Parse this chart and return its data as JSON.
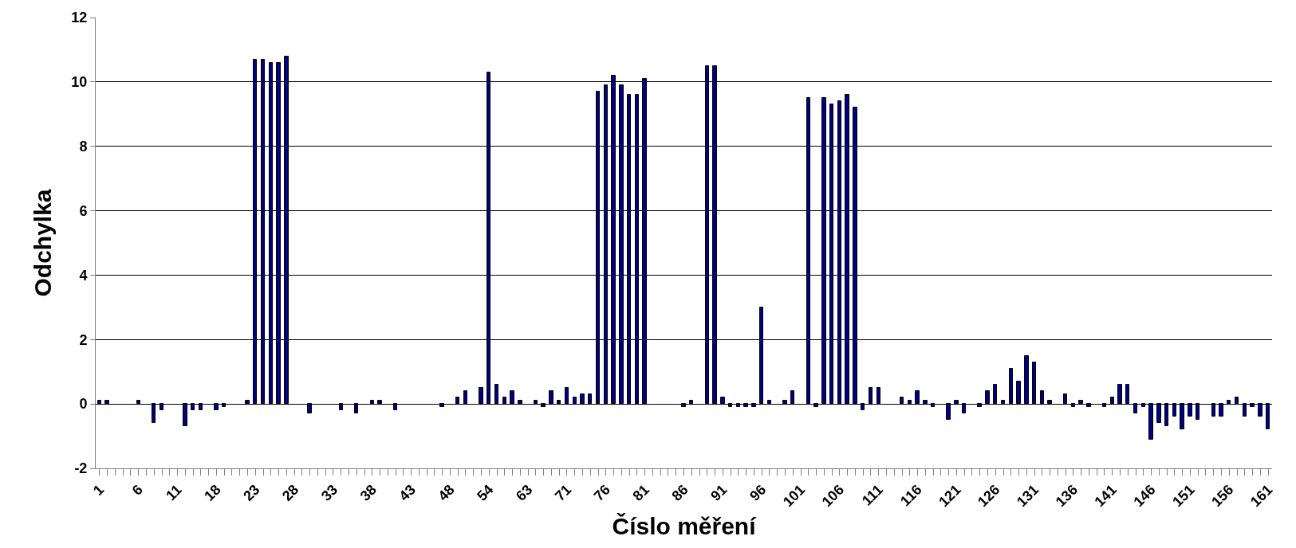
{
  "chart_data": {
    "type": "bar",
    "xlabel": "Číslo měření",
    "ylabel": "Odchylka",
    "categories": [
      "1",
      null,
      null,
      null,
      null,
      "6",
      null,
      null,
      null,
      null,
      "11",
      null,
      null,
      null,
      null,
      "18",
      null,
      null,
      null,
      null,
      "23",
      null,
      null,
      null,
      null,
      "28",
      null,
      null,
      null,
      null,
      "33",
      null,
      null,
      null,
      null,
      "38",
      null,
      null,
      null,
      null,
      "43",
      null,
      null,
      null,
      null,
      "48",
      null,
      null,
      null,
      null,
      "54",
      null,
      null,
      null,
      null,
      "63",
      null,
      null,
      null,
      null,
      "71",
      null,
      null,
      null,
      null,
      "76",
      null,
      null,
      null,
      null,
      "81",
      null,
      null,
      null,
      null,
      "86",
      null,
      null,
      null,
      null,
      "91",
      null,
      null,
      null,
      null,
      "96",
      null,
      null,
      null,
      null,
      "101",
      null,
      null,
      null,
      null,
      "106",
      null,
      null,
      null,
      null,
      "111",
      null,
      null,
      null,
      null,
      "116",
      null,
      null,
      null,
      null,
      "121",
      null,
      null,
      null,
      null,
      "126",
      null,
      null,
      null,
      null,
      "131",
      null,
      null,
      null,
      null,
      "136",
      null,
      null,
      null,
      null,
      "141",
      null,
      null,
      null,
      null,
      "146",
      null,
      null,
      null,
      null,
      "151",
      null,
      null,
      null,
      null,
      "156",
      null,
      null,
      null,
      null,
      "161"
    ],
    "values": [
      0.1,
      0.1,
      0,
      0,
      0,
      0.1,
      0,
      -0.6,
      -0.2,
      0,
      0,
      -0.7,
      -0.2,
      -0.2,
      0,
      -0.2,
      -0.1,
      0,
      0,
      0.1,
      10.7,
      10.7,
      10.6,
      10.6,
      10.8,
      0,
      0,
      -0.3,
      0,
      0,
      0,
      -0.2,
      0,
      -0.3,
      0,
      0.1,
      0.1,
      0,
      -0.2,
      0,
      0,
      0,
      0,
      0,
      -0.1,
      0,
      0.2,
      0.4,
      0,
      0.5,
      10.3,
      0.6,
      0.2,
      0.4,
      0.1,
      0,
      0.1,
      -0.1,
      0.4,
      0.1,
      0.5,
      0.2,
      0.3,
      0.3,
      9.7,
      9.9,
      10.2,
      9.9,
      9.6,
      9.6,
      10.1,
      0,
      0,
      0,
      0,
      -0.1,
      0.1,
      0,
      10.5,
      10.5,
      0.2,
      -0.1,
      -0.1,
      -0.1,
      -0.1,
      3.0,
      0.1,
      0,
      0.1,
      0.4,
      0,
      9.5,
      -0.1,
      9.5,
      9.3,
      9.4,
      9.6,
      9.2,
      -0.2,
      0.5,
      0.5,
      0,
      0,
      0.2,
      0.1,
      0.4,
      0.1,
      -0.1,
      0,
      -0.5,
      0.1,
      -0.3,
      0,
      -0.1,
      0.4,
      0.6,
      0.1,
      1.1,
      0.7,
      1.5,
      1.3,
      0.4,
      0.1,
      0,
      0.3,
      -0.1,
      0.1,
      -0.1,
      0,
      -0.1,
      0.2,
      0.6,
      0.6,
      -0.3,
      -0.1,
      -1.1,
      -0.6,
      -0.7,
      -0.4,
      -0.8,
      -0.4,
      -0.5,
      0,
      -0.4,
      -0.4,
      0.1,
      0.2,
      -0.4,
      -0.1,
      -0.4,
      -0.8
    ],
    "color": "#000080",
    "ylim": [
      -2,
      12
    ],
    "yticks": [
      -2,
      0,
      2,
      4,
      6,
      8,
      10,
      12
    ],
    "grid": "y",
    "legend": false
  }
}
